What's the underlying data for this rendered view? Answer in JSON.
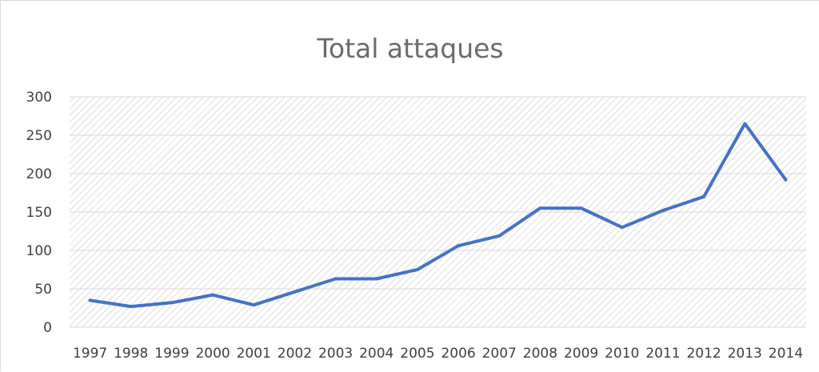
{
  "chart_data": {
    "type": "line",
    "title": "Total attaques",
    "xlabel": "",
    "ylabel": "",
    "categories": [
      "1997",
      "1998",
      "1999",
      "2000",
      "2001",
      "2002",
      "2003",
      "2004",
      "2005",
      "2006",
      "2007",
      "2008",
      "2009",
      "2010",
      "2011",
      "2012",
      "2013",
      "2014"
    ],
    "series": [
      {
        "values": [
          35,
          27,
          32,
          42,
          29,
          46,
          63,
          63,
          75,
          106,
          119,
          155,
          155,
          130,
          152,
          170,
          265,
          192
        ]
      }
    ],
    "ylim": [
      0,
      300
    ],
    "yticks": [
      "0",
      "50",
      "100",
      "150",
      "200",
      "250",
      "300"
    ],
    "grid": true,
    "legend": "none",
    "colors": {
      "line": "#4472c4",
      "grid": "#d9d9d9",
      "hatch": "#c9c9c9"
    }
  }
}
